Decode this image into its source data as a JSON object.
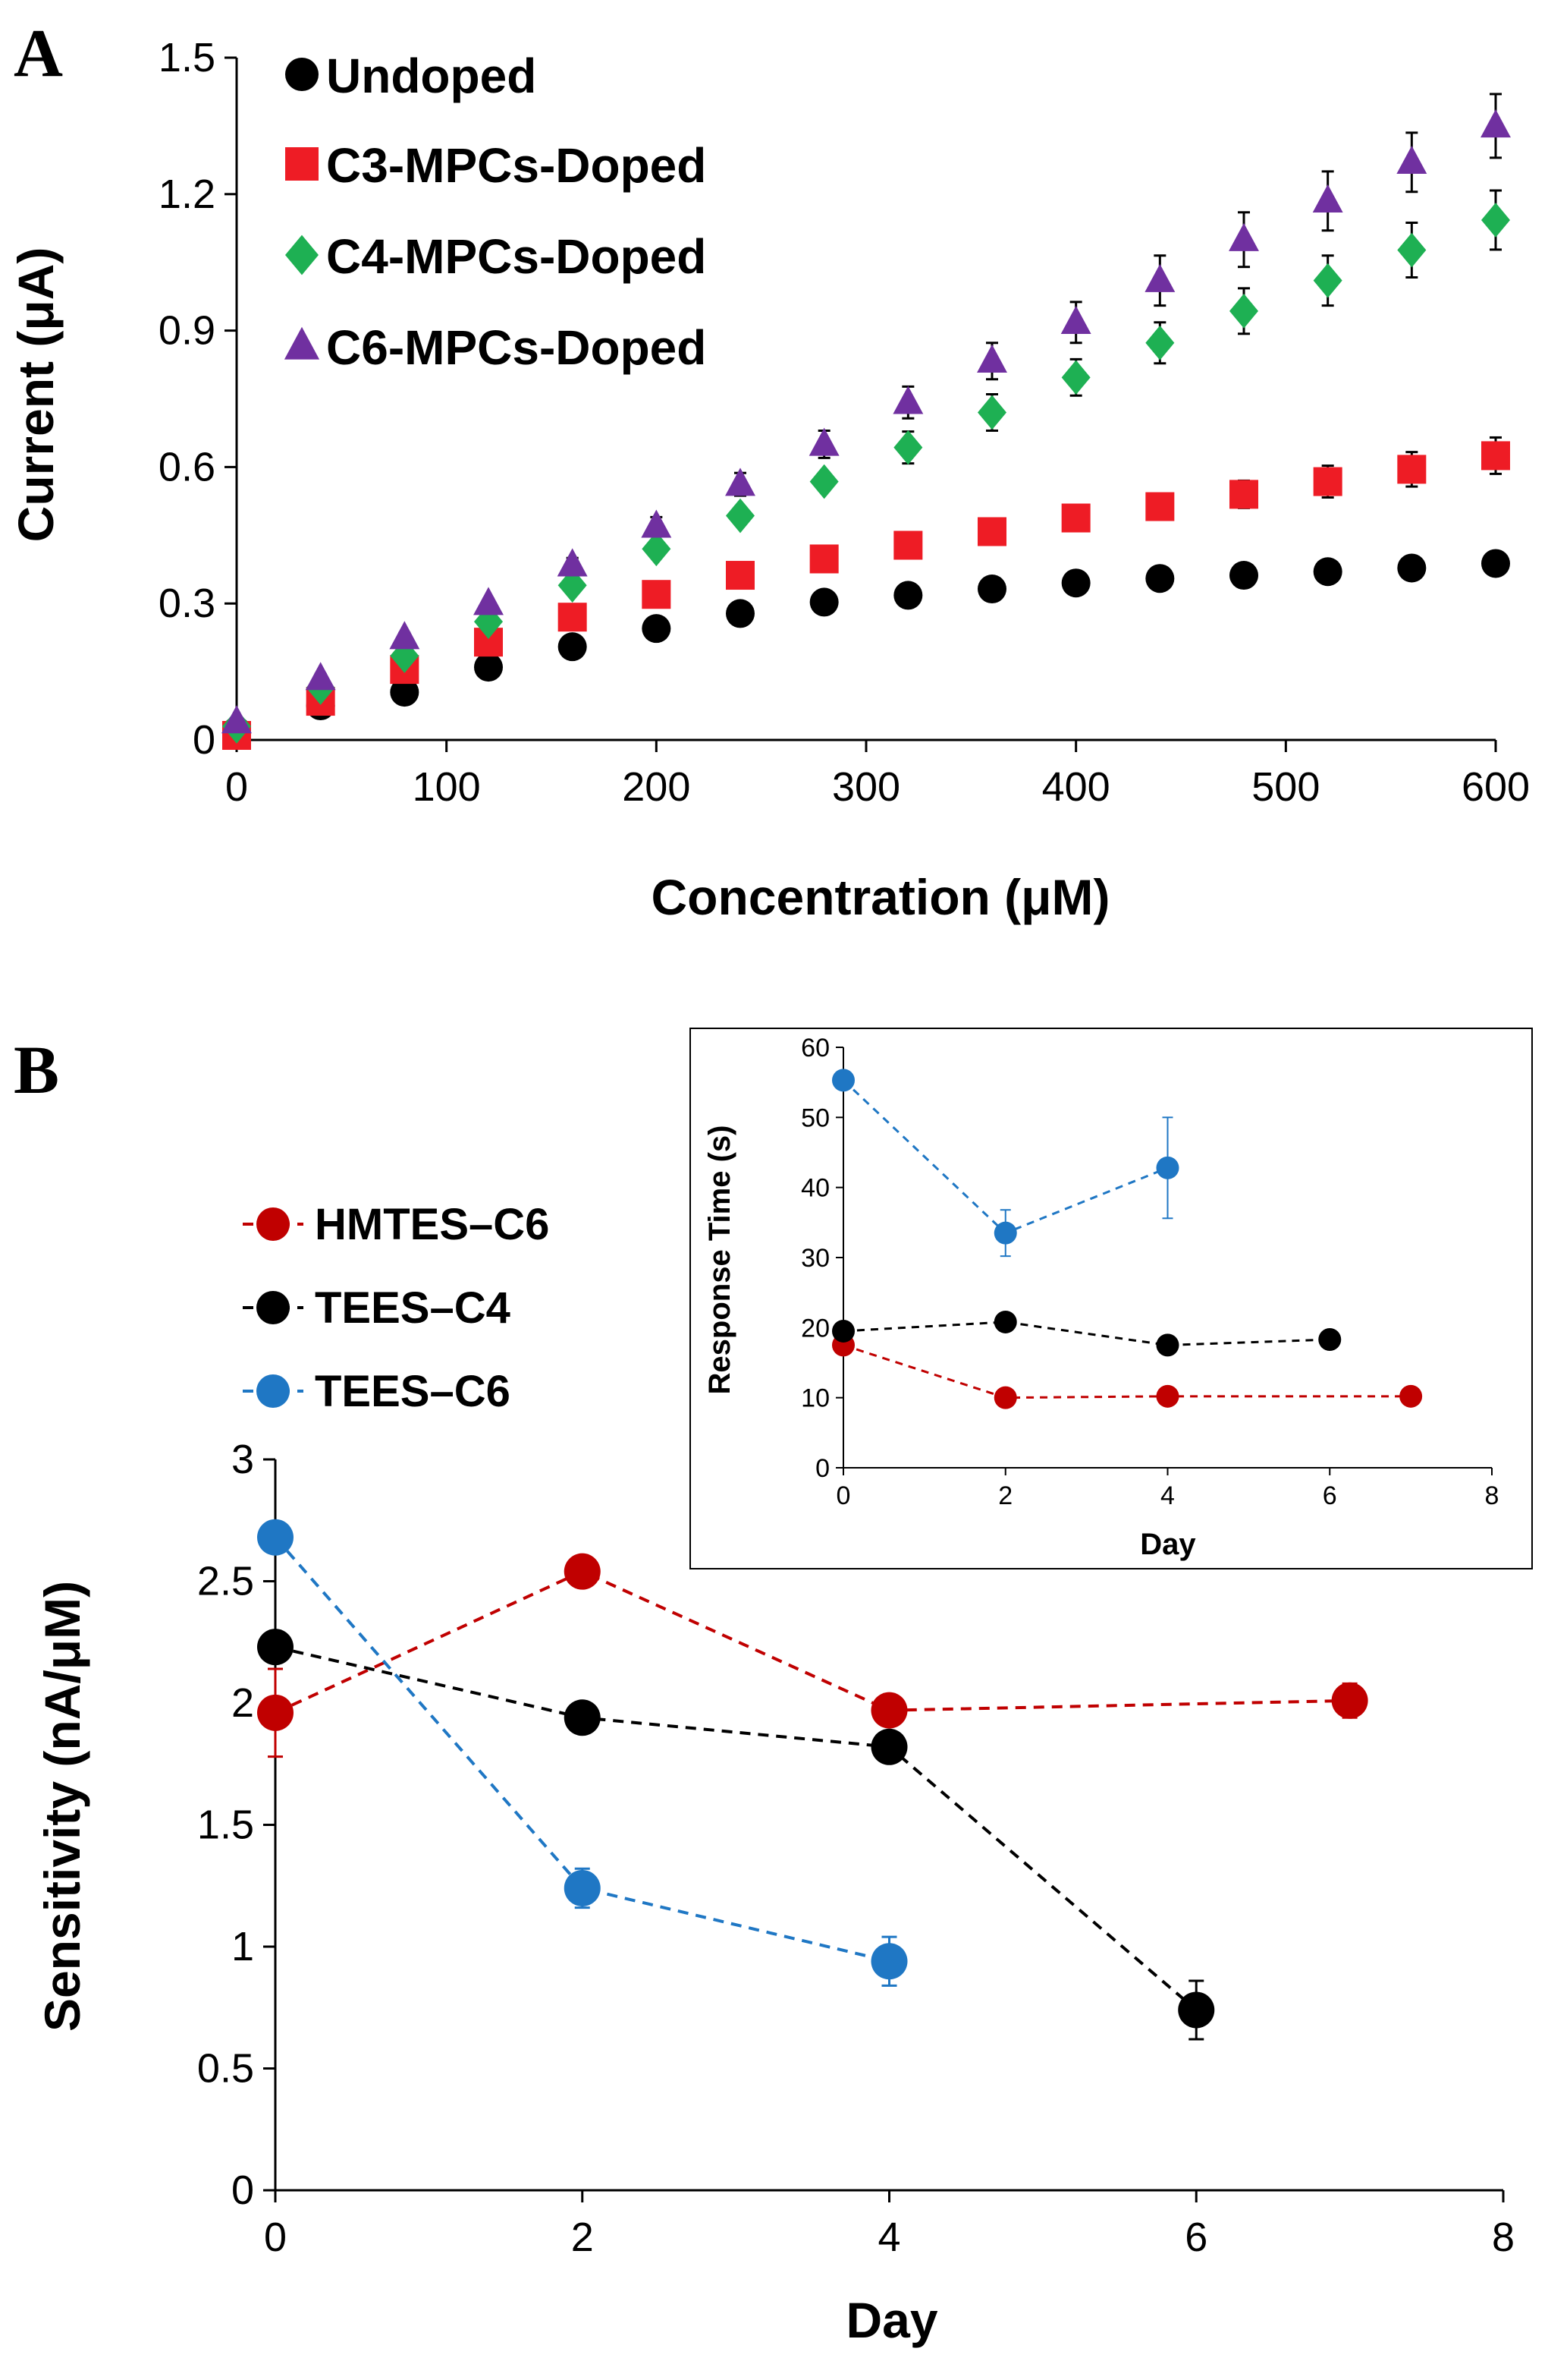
{
  "panel_labels": {
    "a": "A",
    "b": "B"
  },
  "chart_data": [
    {
      "id": "A",
      "type": "scatter",
      "title": "",
      "xlabel": "Concentration (μM)",
      "ylabel": "Current (μA)",
      "xlim": [
        0,
        600
      ],
      "ylim": [
        0,
        1.5
      ],
      "xticks": [
        0,
        100,
        200,
        300,
        400,
        500,
        600
      ],
      "yticks": [
        0,
        0.3,
        0.6,
        0.9,
        1.2,
        1.5
      ],
      "ytick_labels": [
        "0",
        "0.3",
        "0.6",
        "0.9",
        "1.2",
        "1.5"
      ],
      "legend_position": "top-left",
      "x": [
        0,
        40,
        80,
        120,
        160,
        200,
        240,
        280,
        320,
        360,
        400,
        440,
        480,
        520,
        560,
        600
      ],
      "series": [
        {
          "name": "Undoped",
          "marker": "circle",
          "color": "#000000",
          "values": [
            0.02,
            0.075,
            0.105,
            0.16,
            0.205,
            0.245,
            0.278,
            0.303,
            0.318,
            0.332,
            0.345,
            0.355,
            0.362,
            0.37,
            0.378,
            0.388
          ],
          "errors": [
            0.005,
            0.005,
            0.005,
            0.005,
            0.005,
            0.005,
            0.005,
            0.005,
            0.005,
            0.005,
            0.005,
            0.005,
            0.005,
            0.005,
            0.005,
            0.008
          ]
        },
        {
          "name": "C3-MPCs-Doped",
          "marker": "square",
          "color": "#ee1c25",
          "values": [
            0.01,
            0.085,
            0.155,
            0.215,
            0.27,
            0.32,
            0.362,
            0.398,
            0.428,
            0.458,
            0.488,
            0.513,
            0.54,
            0.568,
            0.595,
            0.625
          ],
          "errors": [
            0.005,
            0.008,
            0.01,
            0.01,
            0.01,
            0.01,
            0.01,
            0.01,
            0.01,
            0.012,
            0.012,
            0.015,
            0.03,
            0.035,
            0.038,
            0.04
          ]
        },
        {
          "name": "C4-MPCs-Doped",
          "marker": "diamond",
          "color": "#1eb053",
          "values": [
            0.03,
            0.115,
            0.185,
            0.26,
            0.34,
            0.42,
            0.493,
            0.568,
            0.643,
            0.72,
            0.797,
            0.873,
            0.943,
            1.01,
            1.077,
            1.143
          ],
          "errors": [
            0.005,
            0.01,
            0.01,
            0.01,
            0.015,
            0.015,
            0.02,
            0.02,
            0.035,
            0.04,
            0.04,
            0.045,
            0.05,
            0.055,
            0.06,
            0.065
          ]
        },
        {
          "name": "C6-MPCs-Doped",
          "marker": "triangle",
          "color": "#7030a0",
          "values": [
            0.04,
            0.135,
            0.225,
            0.3,
            0.385,
            0.47,
            0.562,
            0.65,
            0.742,
            0.833,
            0.918,
            1.01,
            1.1,
            1.185,
            1.27,
            1.35
          ],
          "errors": [
            0.005,
            0.01,
            0.01,
            0.01,
            0.015,
            0.02,
            0.025,
            0.03,
            0.035,
            0.04,
            0.045,
            0.055,
            0.06,
            0.065,
            0.065,
            0.07
          ]
        }
      ]
    },
    {
      "id": "B",
      "type": "line",
      "title": "",
      "xlabel": "Day",
      "ylabel": "Sensitivity (nA/μM)",
      "xlim": [
        0,
        8
      ],
      "ylim": [
        0,
        3
      ],
      "xticks": [
        0,
        2,
        4,
        6,
        8
      ],
      "yticks": [
        0,
        0.5,
        1,
        1.5,
        2,
        2.5,
        3
      ],
      "ytick_labels": [
        "0",
        "0.5",
        "1",
        "1.5",
        "2",
        "2.5",
        "3"
      ],
      "legend_position": "top-left",
      "series": [
        {
          "name": "HMTES–C6",
          "color": "#c00000",
          "x": [
            0,
            2,
            4,
            7
          ],
          "values": [
            1.96,
            2.54,
            1.97,
            2.01
          ],
          "errors": [
            0.18,
            0.04,
            0.04,
            0.07
          ]
        },
        {
          "name": "TEES–C4",
          "color": "#000000",
          "x": [
            0,
            2,
            4,
            6
          ],
          "values": [
            2.23,
            1.94,
            1.82,
            0.74
          ],
          "errors": [
            0.04,
            0.04,
            0.03,
            0.12
          ]
        },
        {
          "name": "TEES–C6",
          "color": "#1f77c4",
          "x": [
            0,
            2,
            4
          ],
          "values": [
            2.68,
            1.24,
            0.94
          ],
          "errors": [
            0.04,
            0.08,
            0.1
          ]
        }
      ]
    },
    {
      "id": "B-inset",
      "type": "line",
      "title": "",
      "xlabel": "Day",
      "ylabel": "Response Time (s)",
      "xlim": [
        0,
        8
      ],
      "ylim": [
        0,
        60
      ],
      "xticks": [
        0,
        2,
        4,
        6,
        8
      ],
      "yticks": [
        0,
        10,
        20,
        30,
        40,
        50,
        60
      ],
      "ytick_labels": [
        "0",
        "10",
        "20",
        "30",
        "40",
        "50",
        "60"
      ],
      "series": [
        {
          "name": "HMTES–C6",
          "color": "#c00000",
          "x": [
            0,
            2,
            4,
            7
          ],
          "values": [
            17.5,
            10,
            10.2,
            10.2
          ],
          "errors": [
            0.5,
            0.3,
            0.3,
            0.3
          ]
        },
        {
          "name": "TEES–C4",
          "color": "#000000",
          "x": [
            0,
            2,
            4,
            6
          ],
          "values": [
            19.5,
            20.8,
            17.5,
            18.3
          ],
          "errors": [
            0.5,
            0.5,
            0.5,
            0.5
          ]
        },
        {
          "name": "TEES–C6",
          "color": "#1f77c4",
          "x": [
            0,
            2,
            4
          ],
          "values": [
            55.3,
            33.5,
            42.8
          ],
          "errors": [
            0.5,
            3.3,
            7.2
          ]
        }
      ]
    }
  ]
}
